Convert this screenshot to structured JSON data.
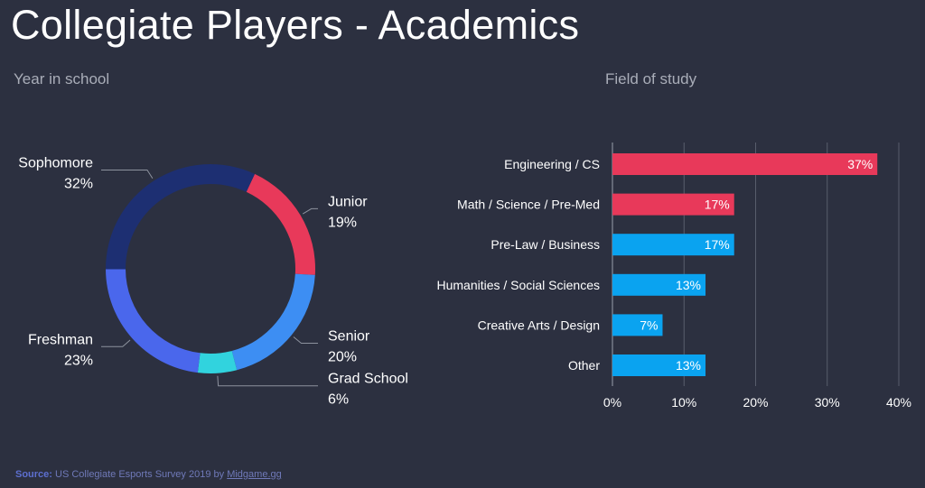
{
  "title": "Collegiate Players - Academics",
  "footer": {
    "source_label": "Source:",
    "source_text": "US Collegiate Esports Survey 2019 by",
    "source_link": "Midgame.gg"
  },
  "chart_data": [
    {
      "type": "pie",
      "subtitle": "Year in school",
      "slices": [
        {
          "label": "Junior",
          "value": 19,
          "value_label": "19%",
          "color": "#e8395a"
        },
        {
          "label": "Senior",
          "value": 20,
          "value_label": "20%",
          "color": "#3d8ef3"
        },
        {
          "label": "Grad School",
          "value": 6,
          "value_label": "6%",
          "color": "#31d3de"
        },
        {
          "label": "Freshman",
          "value": 23,
          "value_label": "23%",
          "color": "#4a67ec"
        },
        {
          "label": "Sophomore",
          "value": 32,
          "value_label": "32%",
          "color": "#1d2f72"
        }
      ]
    },
    {
      "type": "bar",
      "orientation": "horizontal",
      "subtitle": "Field of study",
      "categories": [
        "Engineering / CS",
        "Math / Science / Pre-Med",
        "Pre-Law / Business",
        "Humanities / Social Sciences",
        "Creative Arts / Design",
        "Other"
      ],
      "values": [
        37,
        17,
        17,
        13,
        7,
        13
      ],
      "value_labels": [
        "37%",
        "17%",
        "17%",
        "13%",
        "7%",
        "13%"
      ],
      "colors": [
        "#e8395a",
        "#e8395a",
        "#0aa3f0",
        "#0aa3f0",
        "#0aa3f0",
        "#0aa3f0"
      ],
      "xlim": [
        0,
        40
      ],
      "xticks": [
        0,
        10,
        20,
        30,
        40
      ],
      "xtick_labels": [
        "0%",
        "10%",
        "20%",
        "30%",
        "40%"
      ],
      "grid": true
    }
  ]
}
